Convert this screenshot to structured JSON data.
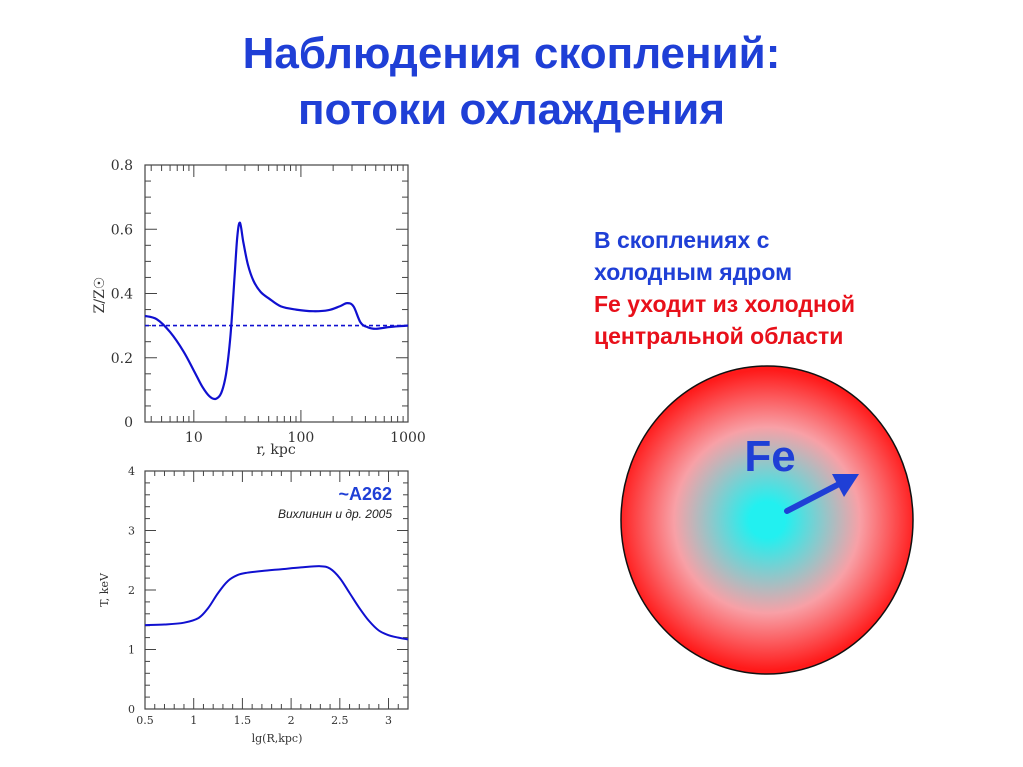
{
  "slide": {
    "title_line1": "Наблюдения скоплений:",
    "title_line2": "потоки охлаждения",
    "text_line1": "В скоплениях с",
    "text_line2": "холодным ядром",
    "text_line3": "Fe уходит из холодной",
    "text_line4": "центральной области",
    "colors": {
      "title": "#1f3fd6",
      "accent_red": "#e8101a",
      "curve": "#1010d0"
    }
  },
  "diagram": {
    "element_label": "Fe",
    "arrow_icon": "arrow-up-right-icon",
    "sphere_colors": {
      "center": "#22f0f0",
      "edge": "#ff1a1a"
    }
  },
  "chart_data": [
    {
      "type": "line",
      "xscale": "log",
      "xlim": [
        3.5,
        1000
      ],
      "ylim": [
        0,
        0.8
      ],
      "xlabel": "r,  kpc",
      "ylabel": "Z/Z☉",
      "xticks": [
        "10",
        "100",
        "1000"
      ],
      "yticks": [
        "0",
        "0.2",
        "0.4",
        "0.6",
        "0.8"
      ],
      "series": [
        {
          "style": "solid",
          "x": [
            3.5,
            4.5,
            6,
            8,
            10,
            12,
            14,
            16,
            18,
            20,
            22,
            24,
            25.5,
            27,
            29,
            32,
            36,
            42,
            50,
            65,
            90,
            130,
            180,
            230,
            270,
            310,
            360,
            420,
            500,
            650,
            800,
            1000
          ],
          "y": [
            0.33,
            0.32,
            0.28,
            0.22,
            0.16,
            0.11,
            0.08,
            0.072,
            0.09,
            0.15,
            0.27,
            0.45,
            0.58,
            0.62,
            0.56,
            0.49,
            0.44,
            0.405,
            0.385,
            0.36,
            0.35,
            0.345,
            0.348,
            0.36,
            0.37,
            0.36,
            0.31,
            0.295,
            0.29,
            0.295,
            0.298,
            0.3
          ]
        },
        {
          "style": "dashed",
          "x": [
            3.5,
            1000
          ],
          "y": [
            0.3,
            0.3
          ]
        }
      ]
    },
    {
      "type": "line",
      "xlim": [
        0.5,
        3.2
      ],
      "ylim": [
        0,
        4
      ],
      "xlabel": "lg(R,kpc)",
      "ylabel": "T, keV",
      "xticks": [
        "0.5",
        "1",
        "1.5",
        "2",
        "2.5",
        "3"
      ],
      "yticks": [
        "0",
        "1",
        "2",
        "3",
        "4"
      ],
      "annotation_1": "~A262",
      "annotation_2": "Вихлинин и др. 2005",
      "series": [
        {
          "style": "solid",
          "x": [
            0.5,
            0.7,
            0.9,
            1.05,
            1.15,
            1.25,
            1.35,
            1.45,
            1.55,
            1.7,
            1.9,
            2.1,
            2.3,
            2.4,
            2.5,
            2.6,
            2.7,
            2.8,
            2.9,
            3.0,
            3.1,
            3.2
          ],
          "y": [
            1.41,
            1.42,
            1.45,
            1.53,
            1.7,
            1.95,
            2.15,
            2.25,
            2.29,
            2.32,
            2.35,
            2.38,
            2.4,
            2.36,
            2.2,
            1.95,
            1.7,
            1.48,
            1.32,
            1.24,
            1.2,
            1.17
          ]
        }
      ]
    }
  ]
}
